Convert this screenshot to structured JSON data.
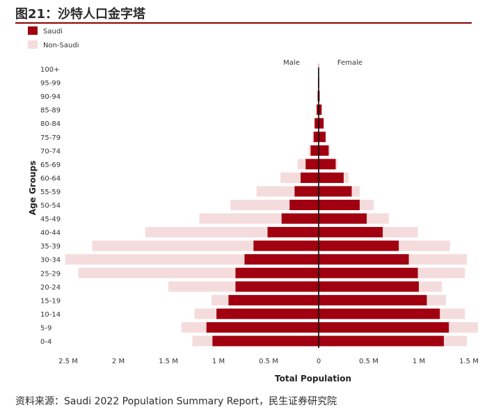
{
  "figure_title": "图21：沙特人口金字塔",
  "source": "资料来源：Saudi 2022 Population Summary Report，民生证券研究院",
  "colors": {
    "saudi": "#a0000f",
    "non_saudi": "#f5dcdc",
    "rule": "#8b0000"
  },
  "chart_data": {
    "type": "bar",
    "orientation": "horizontal-pyramid",
    "xlabel": "Total Population",
    "ylabel": "Age Groups",
    "side_labels": {
      "left": "Male",
      "right": "Female"
    },
    "legend": [
      {
        "key": "saudi",
        "label": "Saudi"
      },
      {
        "key": "non_saudi",
        "label": "Non-Saudi"
      }
    ],
    "legend_position": "top-left",
    "categories": [
      "0-4",
      "5-9",
      "10-14",
      "15-19",
      "20-24",
      "25-29",
      "30-34",
      "35-39",
      "40-44",
      "45-49",
      "50-54",
      "55-59",
      "60-64",
      "65-69",
      "70-74",
      "75-79",
      "80-84",
      "85-89",
      "90-94",
      "95-99",
      "100+"
    ],
    "xlim": [
      -2.6,
      1.5
    ],
    "x_ticks": [
      {
        "value": -2.5,
        "label": "2.5 M"
      },
      {
        "value": -2.0,
        "label": "2 M"
      },
      {
        "value": -1.5,
        "label": "1.5 M"
      },
      {
        "value": -1.0,
        "label": "1 M"
      },
      {
        "value": -0.5,
        "label": "0.5 M"
      },
      {
        "value": 0,
        "label": "0"
      },
      {
        "value": 0.5,
        "label": "0.5 M"
      },
      {
        "value": 1.0,
        "label": "1 M"
      },
      {
        "value": 1.5,
        "label": "1.5 M"
      }
    ],
    "unit": "million",
    "series": [
      {
        "name": "Male Saudi",
        "side": "male",
        "group": "saudi",
        "values": [
          1.06,
          1.12,
          1.02,
          0.9,
          0.83,
          0.83,
          0.74,
          0.65,
          0.51,
          0.37,
          0.29,
          0.24,
          0.18,
          0.13,
          0.08,
          0.05,
          0.04,
          0.02,
          0.01,
          0.005,
          0.002
        ]
      },
      {
        "name": "Male Non-Saudi",
        "side": "male",
        "group": "non_saudi",
        "values": [
          0.2,
          0.25,
          0.22,
          0.17,
          0.67,
          1.57,
          1.79,
          1.61,
          1.22,
          0.82,
          0.59,
          0.38,
          0.2,
          0.08,
          0.02,
          0.01,
          0.005,
          0.003,
          0.001,
          0.0,
          0.0
        ]
      },
      {
        "name": "Female Saudi",
        "side": "female",
        "group": "saudi",
        "values": [
          1.25,
          1.3,
          1.21,
          1.08,
          1.0,
          0.99,
          0.9,
          0.8,
          0.64,
          0.48,
          0.41,
          0.33,
          0.25,
          0.17,
          0.1,
          0.07,
          0.05,
          0.03,
          0.01,
          0.005,
          0.002
        ]
      },
      {
        "name": "Female Non-Saudi",
        "side": "female",
        "group": "non_saudi",
        "values": [
          0.23,
          0.29,
          0.25,
          0.19,
          0.23,
          0.47,
          0.58,
          0.51,
          0.35,
          0.22,
          0.14,
          0.08,
          0.05,
          0.02,
          0.01,
          0.0,
          0.0,
          0.0,
          0.0,
          0.0,
          0.0
        ]
      }
    ],
    "grid": false
  }
}
